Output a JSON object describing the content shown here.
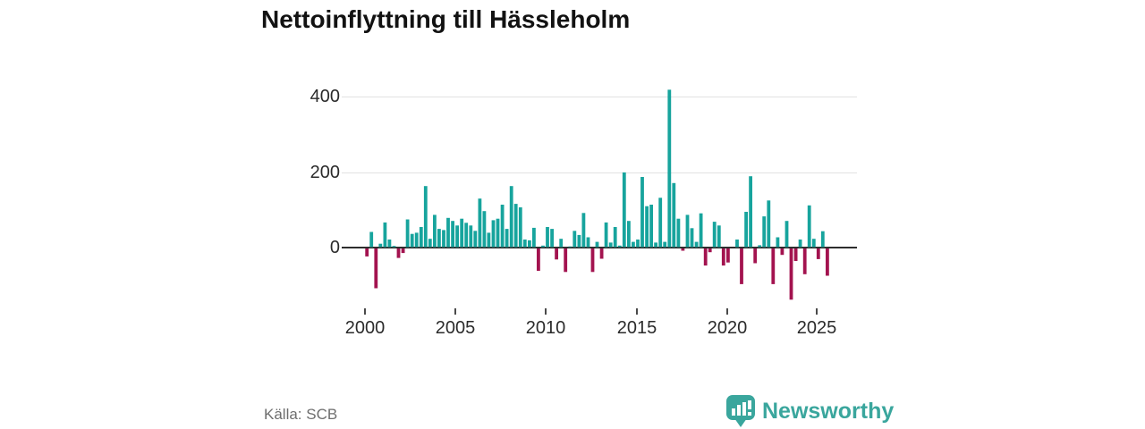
{
  "title": "Nettoinflyttning till Hässleholm",
  "source": "Källa: SCB",
  "brand": {
    "name": "Newsworthy",
    "icon": "bar-chart-map-pin-icon",
    "color": "#3aa69d"
  },
  "colors": {
    "positive": "#17a49d",
    "negative": "#a3134f",
    "grid": "#e2e2e2",
    "axis": "#2e2e2e",
    "tick_text": "#2b2b2b"
  },
  "chart_data": {
    "type": "bar",
    "title": "Nettoinflyttning till Hässleholm",
    "xlabel": "",
    "ylabel": "",
    "x_start_year": 2000,
    "bars_per_year": 4,
    "frequency": "quarterly",
    "x_tick_labels": [
      "2000",
      "2005",
      "2010",
      "2015",
      "2020",
      "2025"
    ],
    "y_tick_labels": [
      "0",
      "200",
      "400"
    ],
    "y_ticks": [
      0,
      200,
      400
    ],
    "ylim": [
      -160,
      440
    ],
    "grid": "horizontal",
    "legend": "none",
    "series_note": "positive bars teal, negative bars crimson",
    "values": [
      -21,
      40,
      -105,
      9,
      65,
      20,
      3,
      -25,
      -12,
      73,
      35,
      38,
      53,
      161,
      22,
      85,
      48,
      45,
      77,
      69,
      57,
      75,
      64,
      57,
      43,
      128,
      95,
      38,
      71,
      75,
      112,
      48,
      161,
      114,
      105,
      20,
      18,
      51,
      -59,
      4,
      53,
      48,
      -29,
      22,
      -62,
      2,
      43,
      32,
      90,
      26,
      -62,
      14,
      -27,
      65,
      12,
      53,
      4,
      197,
      69,
      14,
      20,
      185,
      108,
      112,
      12,
      130,
      14,
      415,
      169,
      75,
      -6,
      85,
      50,
      14,
      89,
      -45,
      -10,
      67,
      57,
      -45,
      -37,
      0,
      20,
      -94,
      93,
      187,
      -39,
      5,
      81,
      123,
      -94,
      26,
      -17,
      69,
      -135,
      -33,
      20,
      -68,
      110,
      22,
      -28,
      42,
      -72
    ]
  }
}
